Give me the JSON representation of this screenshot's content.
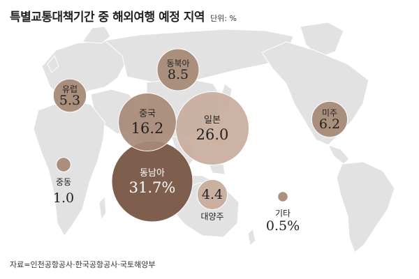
{
  "header": {
    "title": "특별교통대책기간 중 해외여행 예정 지역",
    "unit": "단위: %"
  },
  "chart_data": {
    "type": "bubble",
    "title": "특별교통대책기간 중 해외여행 예정 지역",
    "unit": "%",
    "categories": [
      "동남아",
      "일본",
      "중국",
      "동북아",
      "미주",
      "유럽",
      "대양주",
      "중동",
      "기타"
    ],
    "values": [
      31.7,
      26.0,
      16.2,
      8.5,
      6.2,
      5.3,
      4.4,
      1.0,
      0.5
    ],
    "value_labels": [
      "31.7%",
      "26.0",
      "16.2",
      "8.5",
      "6.2",
      "5.3",
      "4.4",
      "1.0",
      "0.5%"
    ],
    "background": "world-map",
    "colors": {
      "map_land": "#e2e2e2",
      "map_border": "#ffffff",
      "bubble_dark": "#7a5a48",
      "bubble_mid": "#a88a77",
      "bubble_light": "#c8ad9c",
      "label_light": "#ffffff",
      "label_dark": "#222222"
    }
  },
  "footer": {
    "source": "자료=인천공항공사·한국공항공사·국토해양부"
  }
}
